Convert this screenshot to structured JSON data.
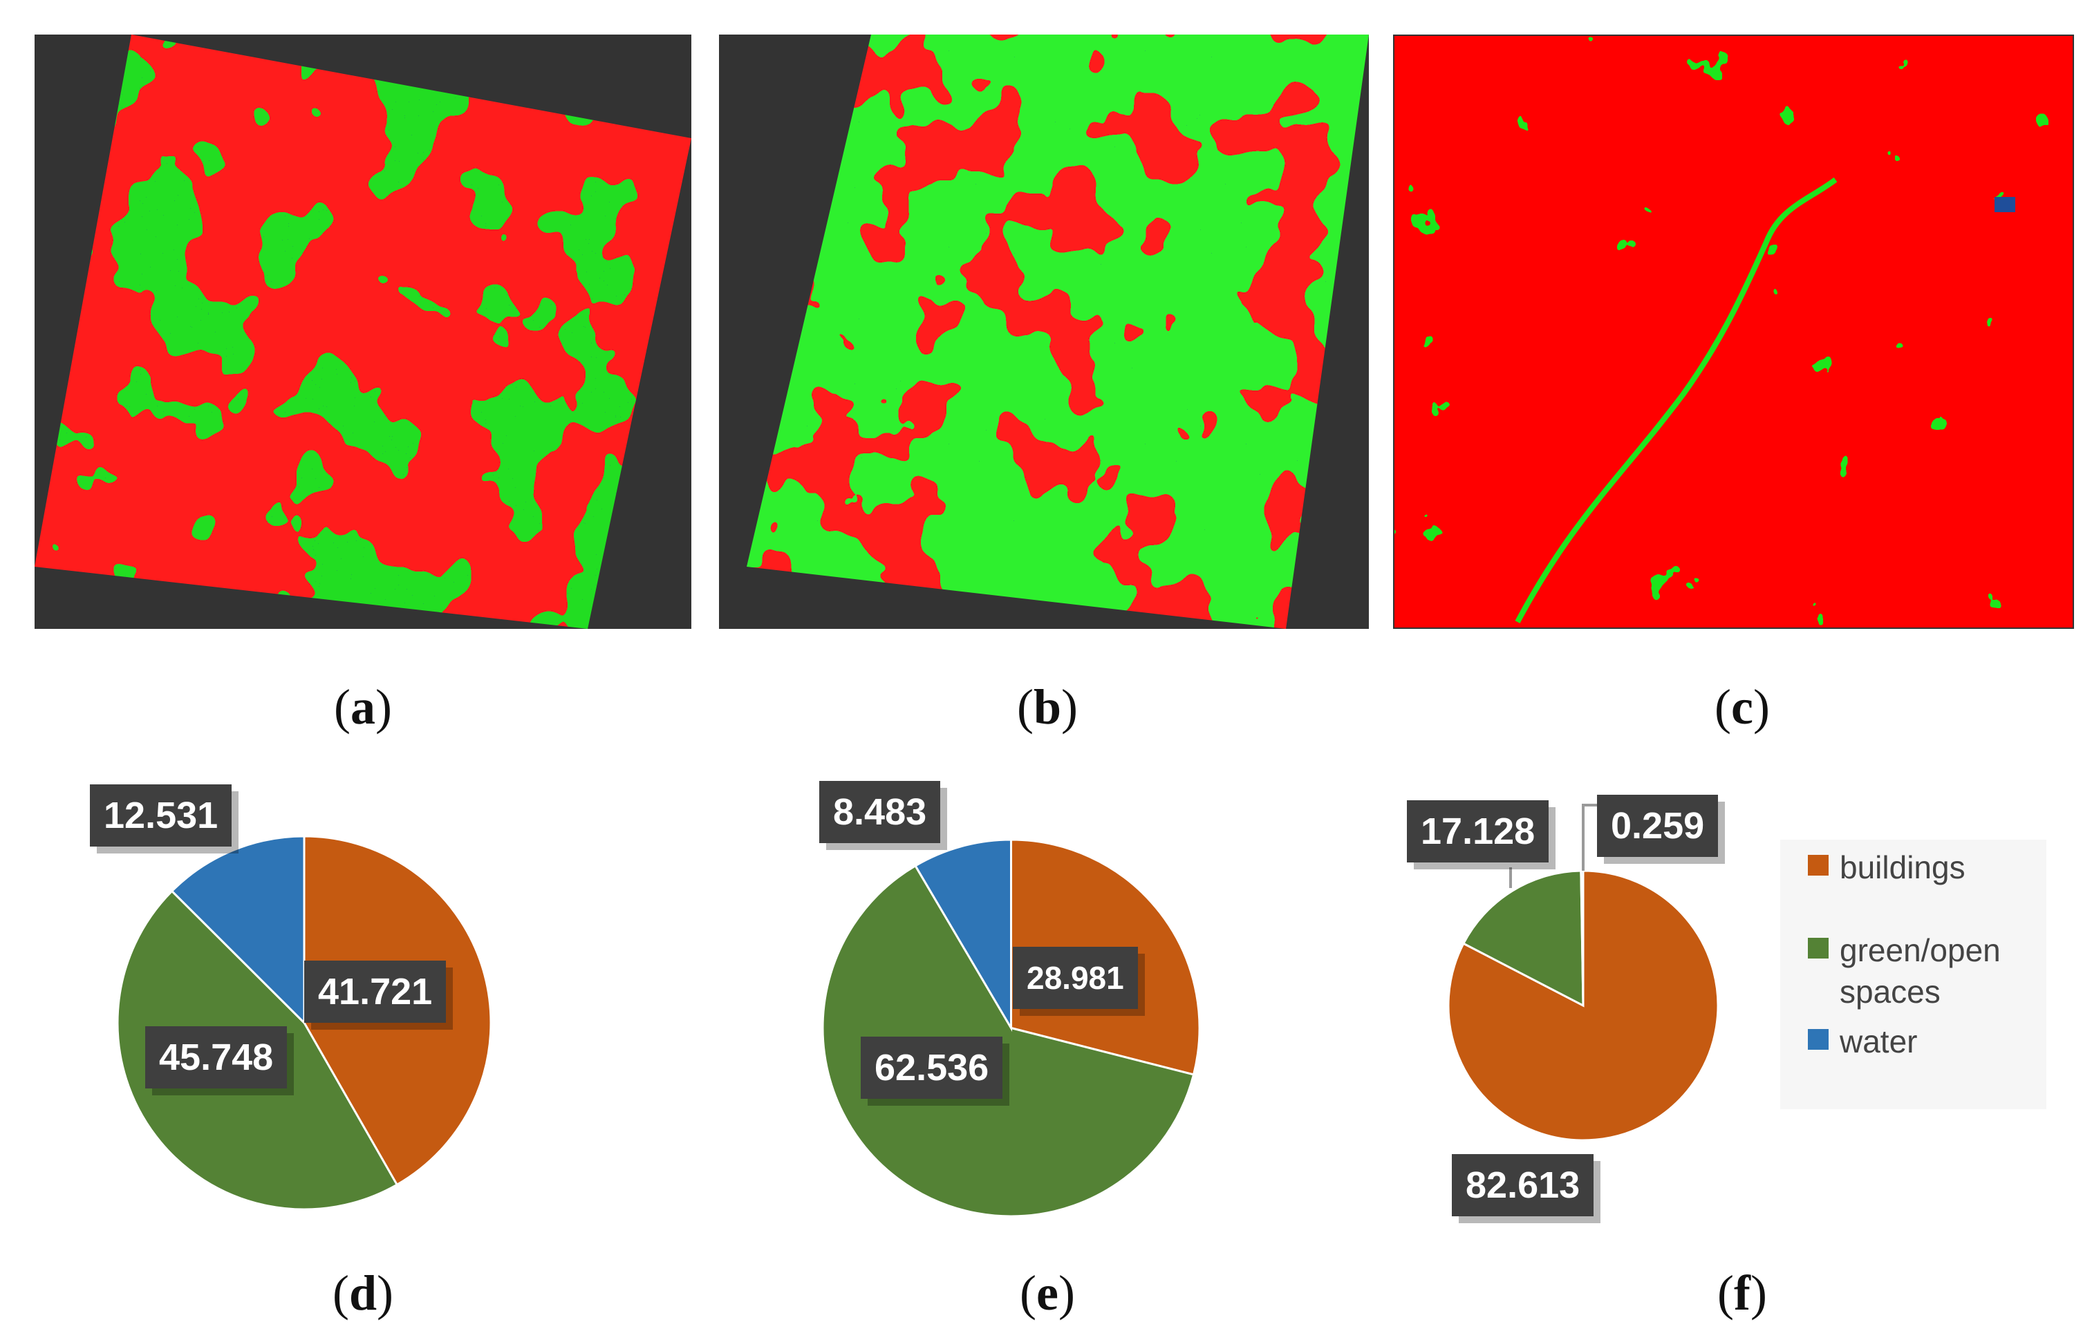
{
  "captions": [
    "a",
    "b",
    "c",
    "d",
    "e",
    "f"
  ],
  "colors": {
    "buildings": "#c55a11",
    "green": "#548235",
    "water": "#2e75b6",
    "map_red": "#ff0000",
    "map_green": "#1ee61e",
    "map_blue": "#1f4e9a",
    "map_background": "#333333"
  },
  "chart_data": [
    {
      "type": "pie",
      "panel": "d",
      "slices": [
        {
          "category": "buildings",
          "value": 41.721,
          "label": "41.721"
        },
        {
          "category": "green/open spaces",
          "value": 45.748,
          "label": "45.748"
        },
        {
          "category": "water",
          "value": 12.531,
          "label": "12.531"
        }
      ]
    },
    {
      "type": "pie",
      "panel": "e",
      "slices": [
        {
          "category": "buildings",
          "value": 28.981,
          "label": "28.981"
        },
        {
          "category": "green/open spaces",
          "value": 62.536,
          "label": "62.536"
        },
        {
          "category": "water",
          "value": 8.483,
          "label": "8.483"
        }
      ]
    },
    {
      "type": "pie",
      "panel": "f",
      "slices": [
        {
          "category": "buildings",
          "value": 82.613,
          "label": "82.613"
        },
        {
          "category": "green/open spaces",
          "value": 17.128,
          "label": "17.128"
        },
        {
          "category": "water",
          "value": 0.259,
          "label": "0.259"
        }
      ]
    }
  ],
  "legend": [
    {
      "label": "buildings",
      "color": "#c55a11"
    },
    {
      "label": "green/open spaces",
      "color": "#548235"
    },
    {
      "label": "water",
      "color": "#2e75b6"
    }
  ]
}
